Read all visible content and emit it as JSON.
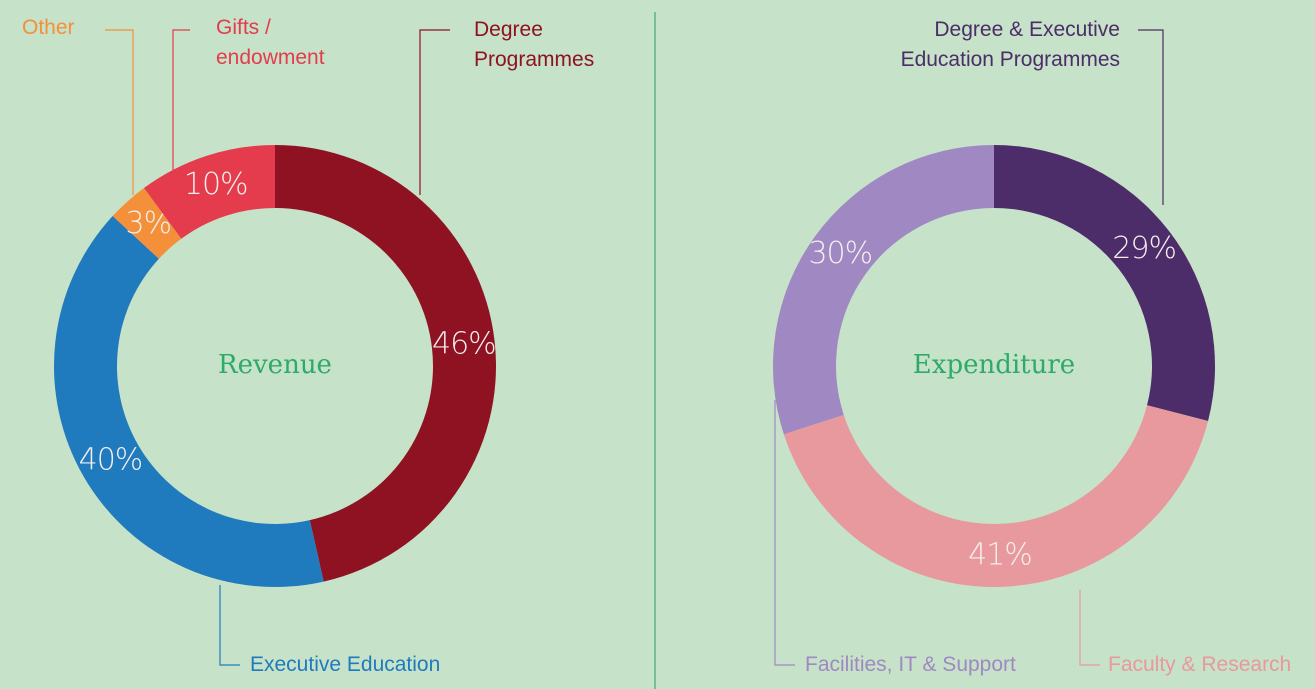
{
  "chart_data": [
    {
      "type": "pie",
      "title": "Revenue",
      "categories": [
        "Degree Programmes",
        "Executive Education",
        "Other",
        "Gifts / endowment"
      ],
      "values": [
        46,
        40,
        3,
        10
      ],
      "value_labels": [
        "46%",
        "40%",
        "3%",
        "10%"
      ],
      "colors": [
        "#8e1222",
        "#1f7bbd",
        "#f4903a",
        "#e43c4c"
      ]
    },
    {
      "type": "pie",
      "title": "Expenditure",
      "categories": [
        "Degree & Executive Education Programmes",
        "Faculty & Research",
        "Facilities, IT & Support"
      ],
      "values": [
        29,
        41,
        30
      ],
      "value_labels": [
        "29%",
        "41%",
        "30%"
      ],
      "colors": [
        "#4c2c69",
        "#e8999e",
        "#a088c2"
      ]
    }
  ]
}
